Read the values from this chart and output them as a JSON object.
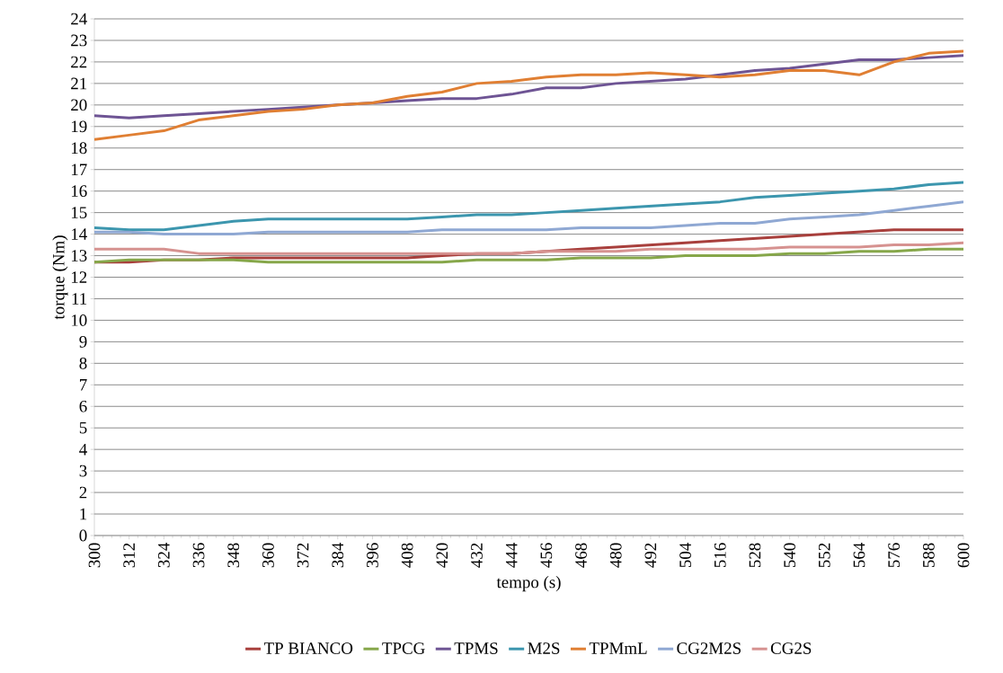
{
  "chart_data": {
    "type": "line",
    "xlabel": "tempo (s)",
    "ylabel": "torque (Nm)",
    "x": [
      300,
      312,
      324,
      336,
      348,
      360,
      372,
      384,
      396,
      408,
      420,
      432,
      444,
      456,
      468,
      480,
      492,
      504,
      516,
      528,
      540,
      552,
      564,
      576,
      588,
      600
    ],
    "series": [
      {
        "name": "TP BIANCO",
        "color": "#a83f3c",
        "values": [
          12.7,
          12.7,
          12.8,
          12.8,
          12.9,
          12.9,
          12.9,
          12.9,
          12.9,
          12.9,
          13.0,
          13.1,
          13.1,
          13.2,
          13.3,
          13.4,
          13.5,
          13.6,
          13.7,
          13.8,
          13.9,
          14.0,
          14.1,
          14.2,
          14.2,
          14.2
        ]
      },
      {
        "name": "TPCG",
        "color": "#86a74a",
        "values": [
          12.7,
          12.8,
          12.8,
          12.8,
          12.8,
          12.7,
          12.7,
          12.7,
          12.7,
          12.7,
          12.7,
          12.8,
          12.8,
          12.8,
          12.9,
          12.9,
          12.9,
          13.0,
          13.0,
          13.0,
          13.1,
          13.1,
          13.2,
          13.2,
          13.3,
          13.3
        ]
      },
      {
        "name": "TPMS",
        "color": "#6e5494",
        "values": [
          19.5,
          19.4,
          19.5,
          19.6,
          19.7,
          19.8,
          19.9,
          20.0,
          20.1,
          20.2,
          20.3,
          20.3,
          20.5,
          20.8,
          20.8,
          21.0,
          21.1,
          21.2,
          21.4,
          21.6,
          21.7,
          21.9,
          22.1,
          22.1,
          22.2,
          22.3
        ]
      },
      {
        "name": "M2S",
        "color": "#3c96ae",
        "values": [
          14.3,
          14.2,
          14.2,
          14.4,
          14.6,
          14.7,
          14.7,
          14.7,
          14.7,
          14.7,
          14.8,
          14.9,
          14.9,
          15.0,
          15.1,
          15.2,
          15.3,
          15.4,
          15.5,
          15.7,
          15.8,
          15.9,
          16.0,
          16.1,
          16.3,
          16.4
        ]
      },
      {
        "name": "TPMmL",
        "color": "#e07f33",
        "values": [
          18.4,
          18.6,
          18.8,
          19.3,
          19.5,
          19.7,
          19.8,
          20.0,
          20.1,
          20.4,
          20.6,
          21.0,
          21.1,
          21.3,
          21.4,
          21.4,
          21.5,
          21.4,
          21.3,
          21.4,
          21.6,
          21.6,
          21.4,
          22.0,
          22.4,
          22.5
        ]
      },
      {
        "name": "CG2M2S",
        "color": "#8fa8d3",
        "values": [
          14.1,
          14.1,
          14.0,
          14.0,
          14.0,
          14.1,
          14.1,
          14.1,
          14.1,
          14.1,
          14.2,
          14.2,
          14.2,
          14.2,
          14.3,
          14.3,
          14.3,
          14.4,
          14.5,
          14.5,
          14.7,
          14.8,
          14.9,
          15.1,
          15.3,
          15.5
        ]
      },
      {
        "name": "CG2S",
        "color": "#d69290",
        "values": [
          13.3,
          13.3,
          13.3,
          13.1,
          13.1,
          13.1,
          13.1,
          13.1,
          13.1,
          13.1,
          13.1,
          13.1,
          13.1,
          13.2,
          13.2,
          13.2,
          13.3,
          13.3,
          13.3,
          13.3,
          13.4,
          13.4,
          13.4,
          13.5,
          13.5,
          13.6
        ]
      }
    ],
    "xlim": [
      300,
      600
    ],
    "ylim": [
      0,
      24
    ],
    "xticks": [
      300,
      312,
      324,
      336,
      348,
      360,
      372,
      384,
      396,
      408,
      420,
      432,
      444,
      456,
      468,
      480,
      492,
      504,
      516,
      528,
      540,
      552,
      564,
      576,
      588,
      600
    ],
    "yticks": [
      0,
      1,
      2,
      3,
      4,
      5,
      6,
      7,
      8,
      9,
      10,
      11,
      12,
      13,
      14,
      15,
      16,
      17,
      18,
      19,
      20,
      21,
      22,
      23,
      24
    ],
    "grid": "y",
    "legend": "bottom",
    "marker": "none",
    "line_style": "solid"
  }
}
